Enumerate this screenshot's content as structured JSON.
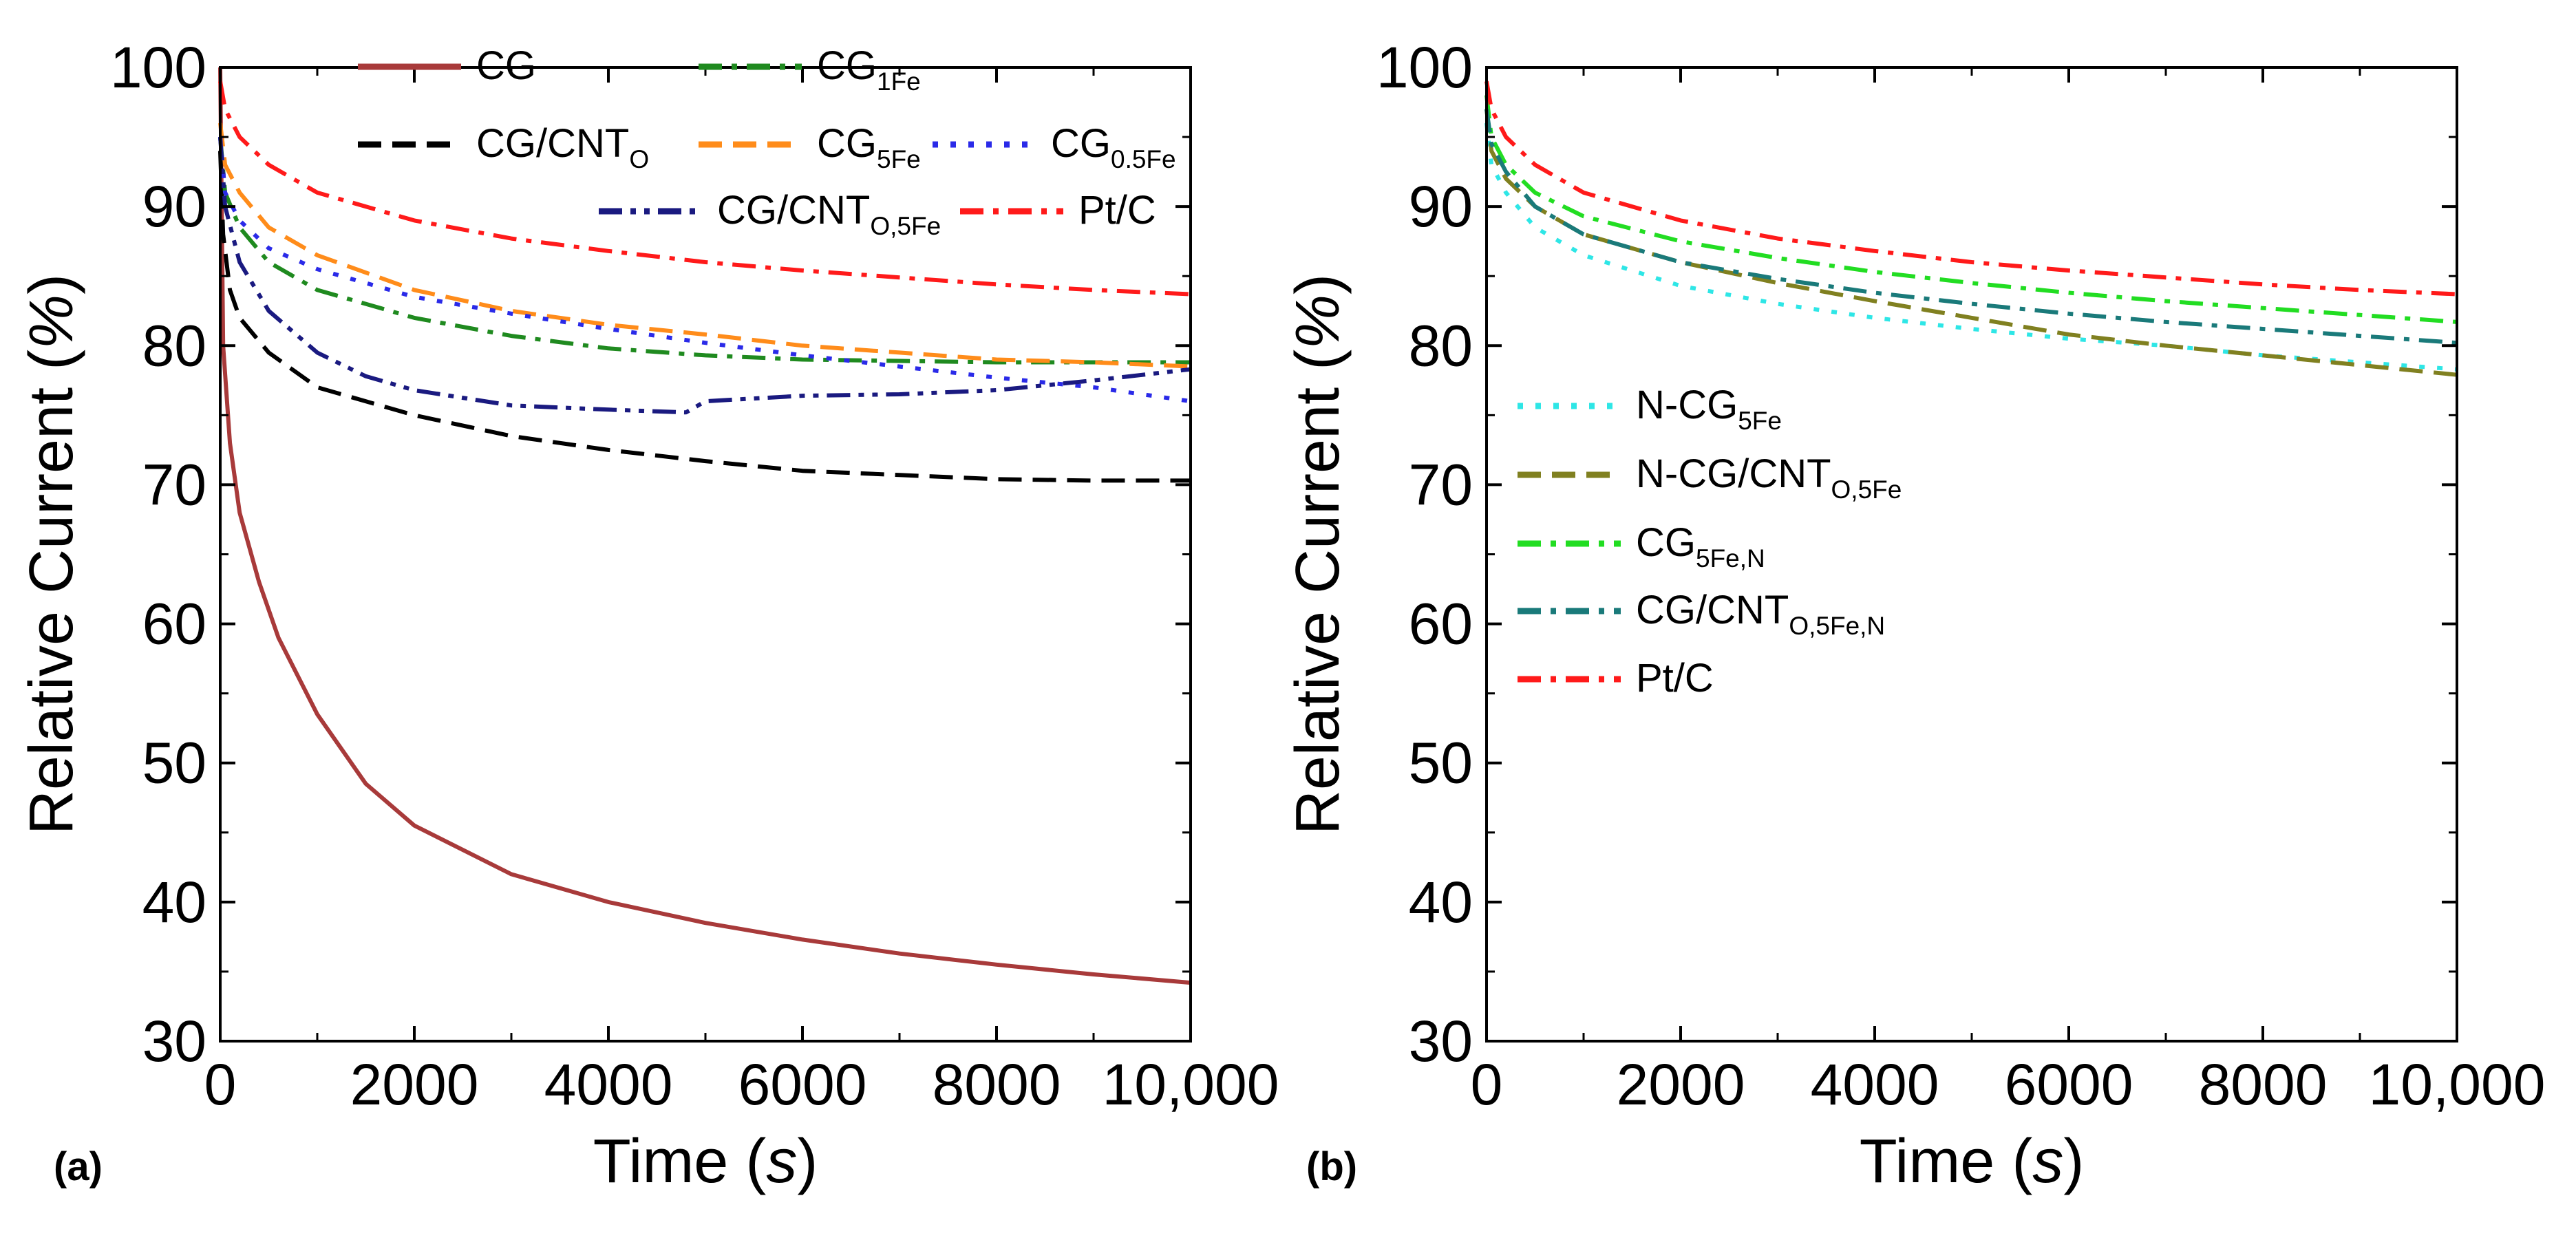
{
  "chart_data": [
    {
      "type": "line",
      "panel_label": "(a)",
      "xlabel": "Time",
      "xlabel_unit": "s",
      "ylabel": "Relative Current",
      "ylabel_unit": "%",
      "xlim": [
        0,
        10000
      ],
      "ylim": [
        30,
        100
      ],
      "xticks": [
        0,
        2000,
        4000,
        6000,
        8000,
        10000
      ],
      "xtick_labels": [
        "0",
        "2000",
        "4000",
        "6000",
        "8000",
        "10,000"
      ],
      "yticks": [
        30,
        40,
        50,
        60,
        70,
        80,
        90,
        100
      ],
      "ytick_labels": [
        "30",
        "40",
        "50",
        "60",
        "70",
        "80",
        "90",
        "100"
      ],
      "legend_position": "top",
      "series": [
        {
          "name": "CG",
          "sub": "",
          "color": "#a83a3a",
          "dash": "none",
          "x": [
            0,
            30,
            100,
            200,
            400,
            600,
            1000,
            1500,
            2000,
            3000,
            4000,
            5000,
            6000,
            7000,
            8000,
            9000,
            10000
          ],
          "y": [
            100,
            80,
            73,
            68,
            63,
            59,
            53.5,
            48.5,
            45.5,
            42,
            40,
            38.5,
            37.3,
            36.3,
            35.5,
            34.8,
            34.2
          ]
        },
        {
          "name": "CG/CNT",
          "sub": "O",
          "color": "#000000",
          "dash": "dash",
          "x": [
            0,
            30,
            100,
            200,
            500,
            1000,
            2000,
            3000,
            4000,
            5000,
            6000,
            7000,
            8000,
            9000,
            10000
          ],
          "y": [
            94,
            88,
            84,
            82,
            79.5,
            77,
            75,
            73.5,
            72.5,
            71.7,
            71,
            70.7,
            70.4,
            70.3,
            70.3
          ]
        },
        {
          "name": "CG",
          "sub": "1Fe",
          "color": "#1f8a1f",
          "dash": "dashdot",
          "x": [
            0,
            50,
            200,
            500,
            1000,
            2000,
            3000,
            4000,
            5000,
            6000,
            7000,
            8000,
            9000,
            10000
          ],
          "y": [
            95,
            91,
            88.5,
            86,
            84,
            82,
            80.7,
            79.8,
            79.3,
            79,
            78.9,
            78.8,
            78.8,
            78.8
          ]
        },
        {
          "name": "CG",
          "sub": "5Fe",
          "color": "#ff8c1a",
          "dash": "dash",
          "x": [
            0,
            50,
            200,
            500,
            1000,
            2000,
            3000,
            4000,
            5000,
            6000,
            7000,
            8000,
            9000,
            10000
          ],
          "y": [
            96,
            93,
            91,
            88.5,
            86.5,
            84,
            82.5,
            81.5,
            80.8,
            80,
            79.5,
            79,
            78.8,
            78.5
          ]
        },
        {
          "name": "CG",
          "sub": "0.5Fe",
          "color": "#2a2ae8",
          "dash": "dot",
          "x": [
            0,
            50,
            200,
            500,
            1000,
            2000,
            3000,
            4000,
            5000,
            6000,
            7000,
            8000,
            9000,
            10000
          ],
          "y": [
            95,
            91,
            89,
            87,
            85.5,
            83.5,
            82.3,
            81.2,
            80.2,
            79.3,
            78.5,
            77.7,
            77,
            76
          ]
        },
        {
          "name": "CG/CNT",
          "sub": "O,5Fe",
          "color": "#1a1a80",
          "dash": "dashdotdot",
          "x": [
            0,
            50,
            200,
            500,
            1000,
            1500,
            2000,
            3000,
            4000,
            4800,
            5000,
            6000,
            7000,
            8000,
            9000,
            10000
          ],
          "y": [
            95,
            90,
            86,
            82.5,
            79.5,
            77.8,
            76.8,
            75.7,
            75.4,
            75.2,
            76,
            76.4,
            76.5,
            76.8,
            77.5,
            78.3
          ]
        },
        {
          "name": "Pt/C",
          "sub": "",
          "color": "#ff1a1a",
          "dash": "dashdot",
          "x": [
            0,
            50,
            200,
            500,
            1000,
            2000,
            3000,
            4000,
            5000,
            6000,
            7000,
            8000,
            9000,
            10000
          ],
          "y": [
            99,
            97,
            95,
            93,
            91,
            89,
            87.7,
            86.8,
            86,
            85.4,
            84.9,
            84.4,
            84,
            83.7
          ]
        }
      ]
    },
    {
      "type": "line",
      "panel_label": "(b)",
      "xlabel": "Time",
      "xlabel_unit": "s",
      "ylabel": "Relative Current",
      "ylabel_unit": "%",
      "xlim": [
        0,
        10000
      ],
      "ylim": [
        30,
        100
      ],
      "xticks": [
        0,
        2000,
        4000,
        6000,
        8000,
        10000
      ],
      "xtick_labels": [
        "0",
        "2000",
        "4000",
        "6000",
        "8000",
        "10,000"
      ],
      "yticks": [
        30,
        40,
        50,
        60,
        70,
        80,
        90,
        100
      ],
      "ytick_labels": [
        "30",
        "40",
        "50",
        "60",
        "70",
        "80",
        "90",
        "100"
      ],
      "legend_position": "left",
      "series": [
        {
          "name": "N-CG",
          "sub": "5Fe",
          "color": "#2ee6e6",
          "dash": "dot",
          "x": [
            0,
            50,
            200,
            500,
            1000,
            2000,
            3000,
            4000,
            5000,
            6000,
            7000,
            8000,
            9000,
            10000
          ],
          "y": [
            96,
            93,
            91,
            88.5,
            86.5,
            84.3,
            83,
            82,
            81.2,
            80.5,
            80,
            79.3,
            78.8,
            78.3
          ]
        },
        {
          "name": "N-CG/CNT",
          "sub": "O,5Fe",
          "color": "#808020",
          "dash": "dash",
          "x": [
            0,
            50,
            200,
            500,
            1000,
            2000,
            3000,
            4000,
            5000,
            6000,
            7000,
            8000,
            9000,
            10000
          ],
          "y": [
            97,
            94,
            92,
            90,
            88,
            86,
            84.5,
            83.2,
            82,
            80.8,
            80,
            79.3,
            78.6,
            77.9
          ]
        },
        {
          "name": "CG",
          "sub": "5Fe,N",
          "color": "#22dd22",
          "dash": "dashdot",
          "x": [
            0,
            50,
            200,
            500,
            1000,
            2000,
            3000,
            4000,
            5000,
            6000,
            7000,
            8000,
            9000,
            10000
          ],
          "y": [
            98,
            95,
            93,
            91,
            89.3,
            87.5,
            86.3,
            85.3,
            84.5,
            83.8,
            83.2,
            82.7,
            82.2,
            81.7
          ]
        },
        {
          "name": "CG/CNT",
          "sub": "O,5Fe,N",
          "color": "#1a7a7a",
          "dash": "dashdot",
          "x": [
            0,
            50,
            200,
            500,
            1000,
            2000,
            3000,
            4000,
            5000,
            6000,
            7000,
            8000,
            9000,
            10000
          ],
          "y": [
            97,
            94.5,
            92.5,
            90,
            88,
            86,
            84.8,
            83.8,
            83,
            82.3,
            81.7,
            81.2,
            80.7,
            80.2
          ]
        },
        {
          "name": "Pt/C",
          "sub": "",
          "color": "#ff1a1a",
          "dash": "dashdot",
          "x": [
            0,
            50,
            200,
            500,
            1000,
            2000,
            3000,
            4000,
            5000,
            6000,
            7000,
            8000,
            9000,
            10000
          ],
          "y": [
            99,
            97,
            95,
            93,
            91,
            89,
            87.7,
            86.8,
            86,
            85.4,
            84.9,
            84.4,
            84,
            83.7
          ]
        }
      ]
    }
  ]
}
